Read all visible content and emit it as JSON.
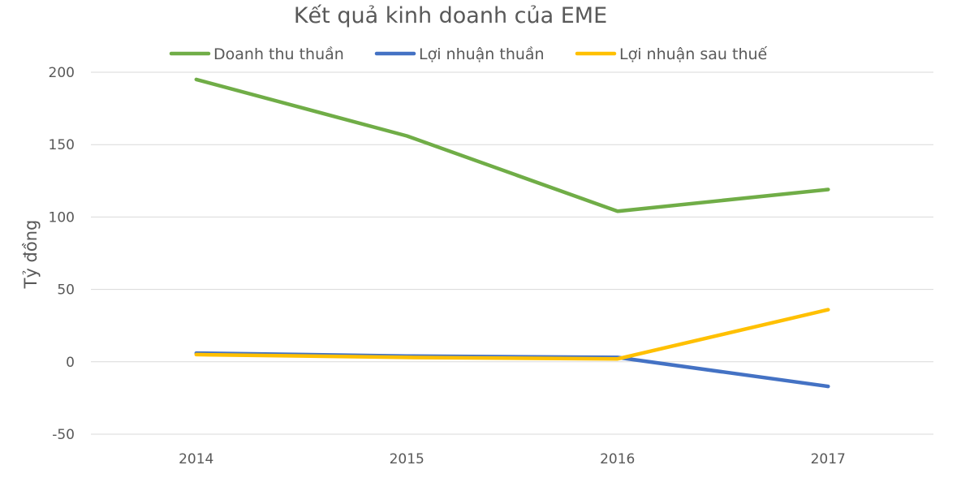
{
  "chart_data": {
    "type": "line",
    "title": "Kết quả kinh doanh của EME",
    "xlabel": "",
    "ylabel": "Tỷ đồng",
    "categories": [
      "2014",
      "2015",
      "2016",
      "2017"
    ],
    "ylim": [
      -50,
      200
    ],
    "yticks": [
      -50,
      0,
      50,
      100,
      150,
      200
    ],
    "grid": true,
    "legend_position": "top",
    "series": [
      {
        "name": "Doanh thu thuần",
        "color": "#70ad47",
        "values": [
          195,
          156,
          104,
          119
        ]
      },
      {
        "name": "Lợi nhuận thuần",
        "color": "#4472c4",
        "values": [
          6,
          4,
          3,
          -17
        ]
      },
      {
        "name": "Lợi nhuận sau thuế",
        "color": "#ffc000",
        "values": [
          5,
          3,
          2,
          36
        ]
      }
    ]
  }
}
